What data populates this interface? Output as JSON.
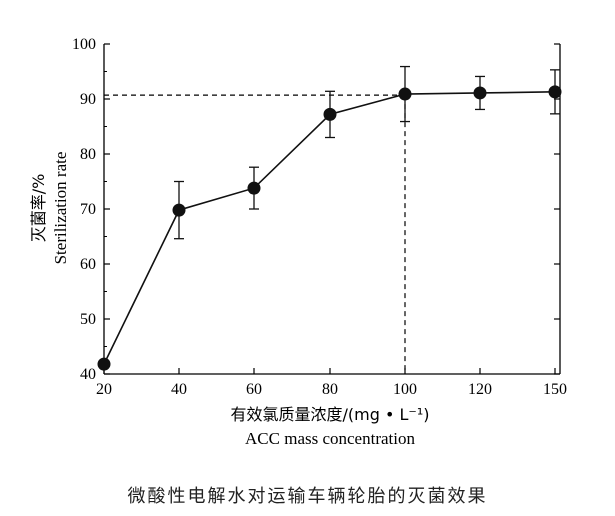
{
  "chart_data": {
    "type": "line",
    "x_tick_labels": [
      "20",
      "40",
      "60",
      "80",
      "100",
      "120",
      "150"
    ],
    "y_ticks": [
      40,
      50,
      60,
      70,
      80,
      90,
      100
    ],
    "ylim": [
      40,
      100
    ],
    "xlabel_cn": "有效氯质量浓度/(mg • L⁻¹)",
    "xlabel_en": "ACC mass concentration",
    "ylabel_cn": "灭菌率/%",
    "ylabel_en": "Sterilization rate",
    "series": [
      {
        "x": [
          "20",
          "40",
          "60",
          "80",
          "100",
          "120",
          "150"
        ],
        "values": [
          41.8,
          69.8,
          73.8,
          87.2,
          90.9,
          91.1,
          91.3
        ],
        "errors": [
          null,
          5.2,
          3.8,
          4.2,
          5.0,
          3.0,
          4.0
        ]
      }
    ],
    "reference": {
      "x": "100",
      "y": 90.7,
      "style": "dashed"
    },
    "grid": false,
    "marker_color": "#111111",
    "line_color": "#111111"
  },
  "caption": "微酸性电解水对运输车辆轮胎的灭菌效果"
}
